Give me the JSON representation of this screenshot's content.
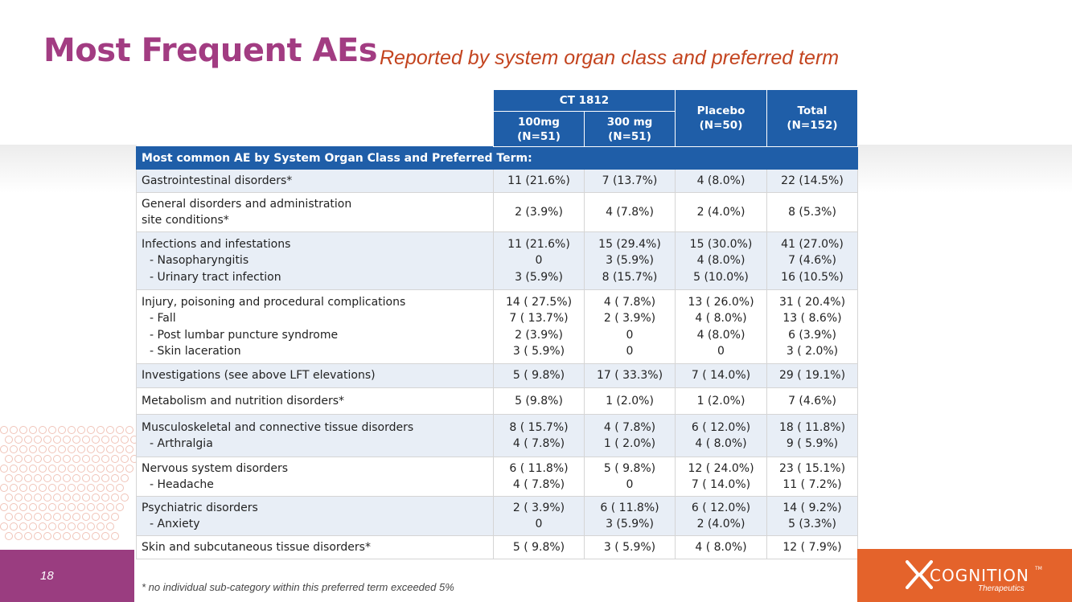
{
  "slide": {
    "title": "Most Frequent AEs",
    "subtitle": "Reported by system organ class and preferred term",
    "page_number": "18",
    "footnote": "*  no individual sub-category within this preferred term exceeded 5%"
  },
  "logo": {
    "name": "COGNITION",
    "tagline": "Therapeutics",
    "tm": "TM"
  },
  "colors": {
    "title": "#a23c82",
    "subtitle": "#c3441f",
    "table_header": "#1f5ea8",
    "row_shade": "#e8eef6",
    "footer_left": "#9a3d80",
    "footer_right": "#e4632b"
  },
  "table": {
    "group_header": "CT 1812",
    "columns": [
      {
        "line1": "100mg",
        "line2": "(N=51)"
      },
      {
        "line1": "300 mg",
        "line2": "(N=51)"
      },
      {
        "line1": "Placebo",
        "line2": "(N=50)"
      },
      {
        "line1": "Total",
        "line2": "(N=152)"
      }
    ],
    "section_header": "Most common AE by System Organ Class and Preferred Term:",
    "rows": [
      {
        "labels": [
          "Gastrointestinal disorders*"
        ],
        "c1": [
          "11 (21.6%)"
        ],
        "c2": [
          "7 (13.7%)"
        ],
        "c3": [
          "4 (8.0%)"
        ],
        "c4": [
          "22 (14.5%)"
        ]
      },
      {
        "labels": [
          "General disorders and administration",
          "site conditions*"
        ],
        "c1": [
          "2 (3.9%)"
        ],
        "c2": [
          "4 (7.8%)"
        ],
        "c3": [
          "2 (4.0%)"
        ],
        "c4": [
          "8 (5.3%)"
        ]
      },
      {
        "labels": [
          "Infections and infestations",
          "- Nasopharyngitis",
          "- Urinary tract infection"
        ],
        "c1": [
          "11 (21.6%)",
          "0",
          "3 (5.9%)"
        ],
        "c2": [
          "15 (29.4%)",
          "3 (5.9%)",
          "8 (15.7%)"
        ],
        "c3": [
          "15 (30.0%)",
          "4 (8.0%)",
          "5 (10.0%)"
        ],
        "c4": [
          "41 (27.0%)",
          "7 (4.6%)",
          "16 (10.5%)"
        ]
      },
      {
        "labels": [
          "Injury, poisoning and procedural complications",
          "- Fall",
          "- Post lumbar puncture syndrome",
          "- Skin laceration"
        ],
        "c1": [
          "14 ( 27.5%)",
          "7 ( 13.7%)",
          "2 (3.9%)",
          "3 ( 5.9%)"
        ],
        "c2": [
          "4 ( 7.8%)",
          "2 ( 3.9%)",
          "0",
          "0"
        ],
        "c3": [
          "13 ( 26.0%)",
          "4 ( 8.0%)",
          "4 (8.0%)",
          "0"
        ],
        "c4": [
          "31 ( 20.4%)",
          "13 ( 8.6%)",
          "6 (3.9%)",
          "3 ( 2.0%)"
        ]
      },
      {
        "labels": [
          "Investigations (see above LFT elevations)"
        ],
        "c1": [
          "5 ( 9.8%)"
        ],
        "c2": [
          "17 ( 33.3%)"
        ],
        "c3": [
          "7 ( 14.0%)"
        ],
        "c4": [
          "29 ( 19.1%)"
        ]
      },
      {
        "labels": [
          "Metabolism and nutrition disorders*"
        ],
        "c1": [
          "5 (9.8%)"
        ],
        "c2": [
          "1 (2.0%)"
        ],
        "c3": [
          "1 (2.0%)"
        ],
        "c4": [
          "7 (4.6%)"
        ]
      },
      {
        "labels": [
          "Musculoskeletal and connective tissue disorders",
          "- Arthralgia"
        ],
        "c1": [
          "8 ( 15.7%)",
          "4 ( 7.8%)"
        ],
        "c2": [
          "4 ( 7.8%)",
          "1 ( 2.0%)"
        ],
        "c3": [
          "6 ( 12.0%)",
          "4 ( 8.0%)"
        ],
        "c4": [
          "18 ( 11.8%)",
          "9 ( 5.9%)"
        ]
      },
      {
        "labels": [
          "Nervous system disorders",
          "- Headache"
        ],
        "c1": [
          "6 ( 11.8%)",
          "4 ( 7.8%)"
        ],
        "c2": [
          "5 ( 9.8%)",
          "0"
        ],
        "c3": [
          "12 ( 24.0%)",
          "7 ( 14.0%)"
        ],
        "c4": [
          "23 ( 15.1%)",
          "11 ( 7.2%)"
        ]
      },
      {
        "labels": [
          "Psychiatric disorders",
          "- Anxiety"
        ],
        "c1": [
          "2 ( 3.9%)",
          "0"
        ],
        "c2": [
          "6 ( 11.8%)",
          "3 (5.9%)"
        ],
        "c3": [
          "6 ( 12.0%)",
          "2 (4.0%)"
        ],
        "c4": [
          "14 ( 9.2%)",
          "5 (3.3%)"
        ]
      },
      {
        "labels": [
          "Skin and subcutaneous tissue disorders*"
        ],
        "c1": [
          "5 ( 9.8%)"
        ],
        "c2": [
          "3 ( 5.9%)"
        ],
        "c3": [
          "4 ( 8.0%)"
        ],
        "c4": [
          "12 ( 7.9%)"
        ]
      }
    ]
  }
}
